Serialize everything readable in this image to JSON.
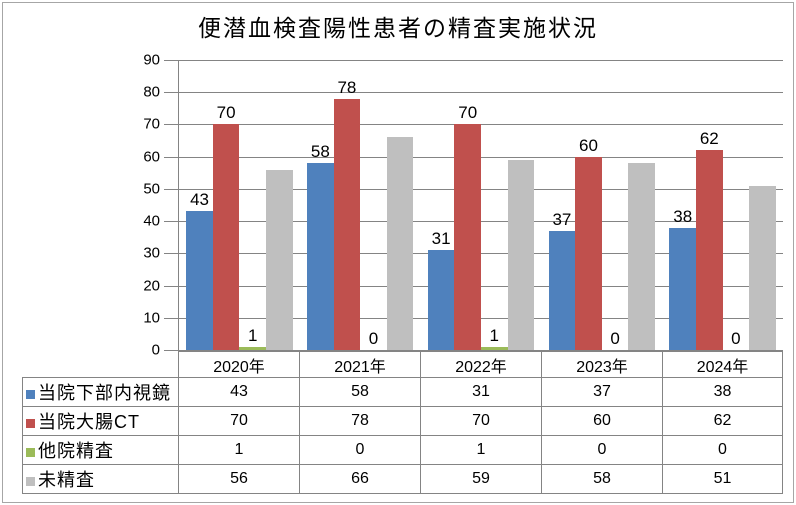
{
  "title": "便潜血検査陽性患者の精査実施状況",
  "colors": {
    "series_blue": "#4F81BD",
    "series_red": "#C0504D",
    "series_green": "#9BBB59",
    "series_gray": "#BFBFBF",
    "axis_line": "#848484",
    "outer_border": "#A6A6A6"
  },
  "chart_data": {
    "type": "bar",
    "title": "便潜血検査陽性患者の精査実施状況",
    "categories": [
      "2020年",
      "2021年",
      "2022年",
      "2023年",
      "2024年"
    ],
    "series": [
      {
        "name": "当院下部内視鏡",
        "color": "#4F81BD",
        "values": [
          43,
          58,
          31,
          37,
          38
        ],
        "data_labels": true
      },
      {
        "name": "当院大腸CT",
        "color": "#C0504D",
        "values": [
          70,
          78,
          70,
          60,
          62
        ],
        "data_labels": true
      },
      {
        "name": "他院精査",
        "color": "#9BBB59",
        "values": [
          1,
          0,
          1,
          0,
          0
        ],
        "data_labels": true
      },
      {
        "name": "未精査",
        "color": "#BFBFBF",
        "values": [
          56,
          66,
          59,
          58,
          51
        ],
        "data_labels": false
      }
    ],
    "ylim": [
      0,
      90
    ],
    "ytick_step": 10,
    "yticks": [
      90,
      80,
      70,
      60,
      50,
      40,
      30,
      20,
      10,
      0
    ],
    "grid": true,
    "legend_position": "data-table-left",
    "data_table_shown": true,
    "xlabel": "",
    "ylabel": ""
  }
}
